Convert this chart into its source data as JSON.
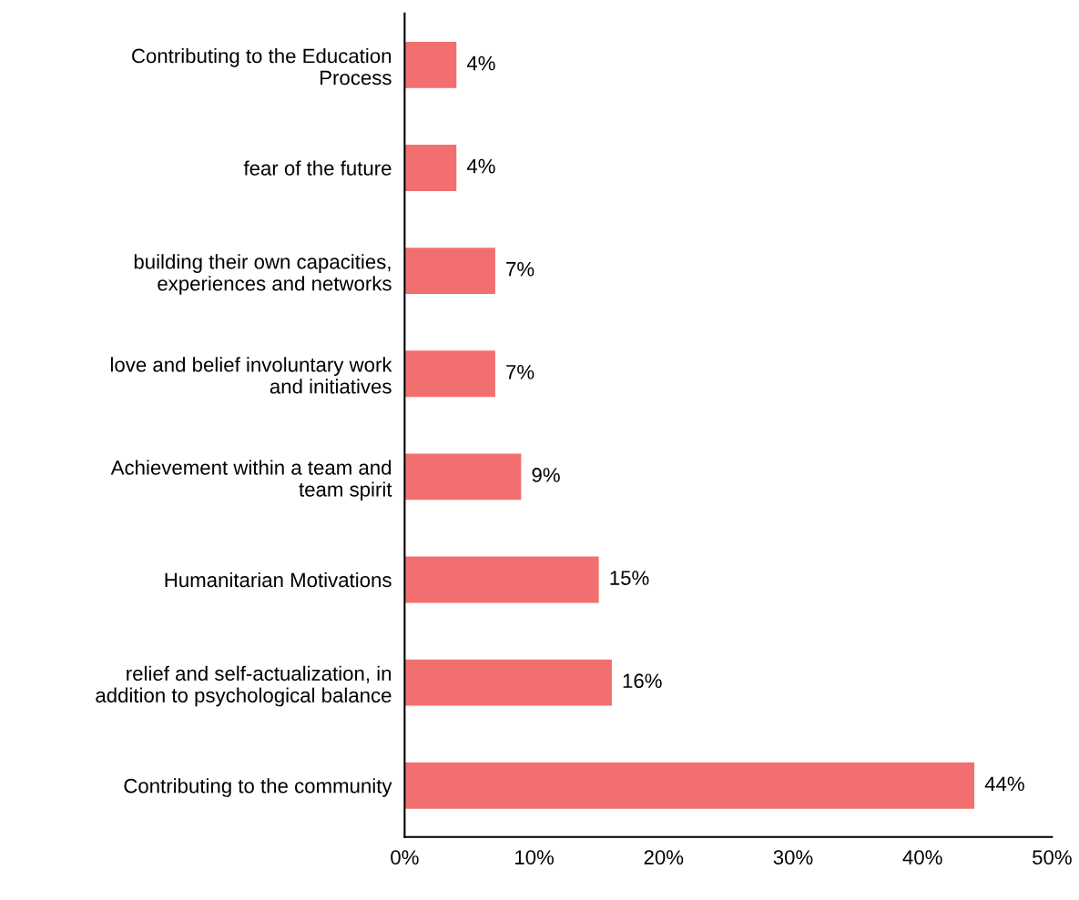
{
  "chart_data": {
    "type": "bar",
    "orientation": "horizontal",
    "categories": [
      "Contributing to the Education\nProcess",
      "fear of the future",
      "building their own capacities,\nexperiences and networks",
      "love and belief involuntary work\nand initiatives",
      "Achievement within a team and\nteam spirit",
      "Humanitarian Motivations",
      "relief and self-actualization, in\naddition to psychological balance",
      "Contributing to the community"
    ],
    "values": [
      4,
      4,
      7,
      7,
      9,
      15,
      16,
      44
    ],
    "color": "#f26f6f",
    "value_labels": [
      "4%",
      "4%",
      "7%",
      "7%",
      "9%",
      "15%",
      "16%",
      "44%"
    ],
    "xlim": [
      0,
      50
    ],
    "xticks": [
      {
        "value": 0,
        "label": "0%"
      },
      {
        "value": 10,
        "label": "10%"
      },
      {
        "value": 20,
        "label": "20%"
      },
      {
        "value": 30,
        "label": "30%"
      },
      {
        "value": 40,
        "label": "40%"
      },
      {
        "value": 50,
        "label": "50%"
      }
    ],
    "grid": false,
    "legend": false
  }
}
